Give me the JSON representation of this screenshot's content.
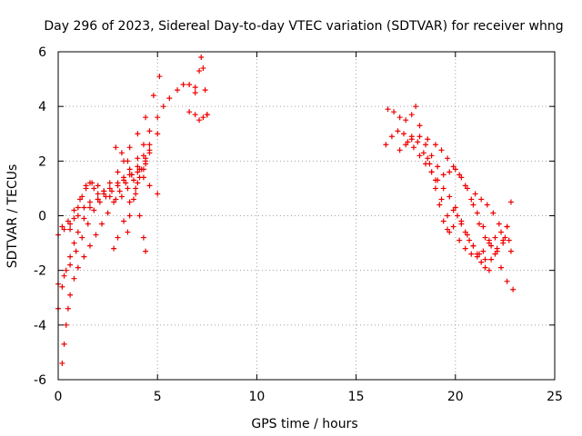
{
  "chart_data": {
    "type": "scatter",
    "title": "Day 296 of 2023, Sidereal Day-to-day VTEC variation (SDTVAR) for receiver whng",
    "xlabel": "GPS time / hours",
    "ylabel": "SDTVAR / TECUs",
    "xlim": [
      0,
      25
    ],
    "ylim": [
      -6,
      6
    ],
    "xticks": [
      0,
      5,
      10,
      15,
      20,
      25
    ],
    "yticks": [
      -6,
      -4,
      -2,
      0,
      2,
      4,
      6
    ],
    "xtick_labels": [
      "0",
      "5",
      "10",
      "15",
      "20",
      "25"
    ],
    "ytick_labels": [
      "-6",
      "-4",
      "-2",
      "0",
      "2",
      "4",
      "6"
    ],
    "grid": true,
    "marker": "+",
    "color": "#ee0000",
    "series": [
      {
        "x": [
          0.0,
          0.3,
          0.6,
          1.0,
          1.3,
          1.6,
          2.0,
          2.3,
          2.6,
          3.0,
          3.3,
          3.6,
          4.0,
          4.3,
          4.6,
          5.0,
          5.3,
          5.6,
          6.0,
          6.3,
          6.6,
          6.9
        ],
        "y": [
          -0.7,
          -0.5,
          -0.3,
          0.0,
          0.3,
          0.5,
          0.6,
          0.8,
          1.0,
          1.2,
          1.4,
          1.7,
          2.1,
          2.6,
          3.1,
          3.6,
          4.0,
          4.3,
          4.6,
          4.8,
          4.8,
          4.7
        ]
      },
      {
        "x": [
          0.0,
          0.3,
          0.6,
          0.9,
          1.2,
          1.5,
          1.8,
          2.1,
          2.4,
          2.7,
          3.0,
          3.3,
          3.6,
          4.0,
          4.3,
          4.6,
          5.0
        ],
        "y": [
          -2.5,
          -2.2,
          -1.8,
          -1.3,
          -0.8,
          -0.3,
          0.2,
          0.5,
          0.7,
          0.9,
          1.1,
          1.3,
          1.5,
          1.8,
          2.2,
          2.6,
          3.0
        ]
      },
      {
        "x": [
          0.0,
          0.2,
          0.4,
          0.6,
          0.8,
          1.0,
          1.3,
          1.6,
          2.0,
          2.3,
          2.6,
          3.0,
          3.3,
          3.6,
          4.0,
          4.4,
          4.8,
          5.1
        ],
        "y": [
          -3.4,
          -2.6,
          -2.0,
          -1.5,
          -1.0,
          -0.6,
          -0.1,
          0.3,
          0.6,
          0.9,
          1.2,
          1.6,
          2.0,
          2.5,
          3.0,
          3.6,
          4.4,
          5.1
        ]
      },
      {
        "x": [
          0.2,
          0.3,
          0.4,
          0.5,
          0.6,
          0.8,
          1.0,
          1.3,
          1.6,
          1.9,
          2.2,
          2.5,
          2.8,
          3.1,
          3.4,
          3.7,
          4.0,
          4.3,
          4.6,
          5.0
        ],
        "y": [
          -5.4,
          -4.7,
          -4.0,
          -3.4,
          -2.9,
          -2.3,
          -1.9,
          -1.5,
          -1.1,
          -0.7,
          -0.3,
          0.1,
          0.5,
          0.9,
          1.2,
          1.5,
          1.6,
          1.4,
          1.1,
          0.8
        ]
      },
      {
        "x": [
          0.2,
          0.5,
          0.8,
          1.1,
          1.4,
          1.7,
          2.0,
          2.3,
          2.6,
          2.9,
          3.2,
          3.5,
          3.8,
          4.1,
          4.4,
          4.6
        ],
        "y": [
          -0.4,
          -0.2,
          0.2,
          0.6,
          1.0,
          1.2,
          1.1,
          0.9,
          0.7,
          0.6,
          0.7,
          1.0,
          1.3,
          1.7,
          2.0,
          2.3
        ]
      },
      {
        "x": [
          0.6,
          0.8,
          1.0,
          1.2,
          1.4,
          1.6,
          1.8,
          2.0
        ],
        "y": [
          -0.5,
          -0.1,
          0.3,
          0.7,
          1.1,
          1.2,
          1.0,
          0.8
        ]
      },
      {
        "x": [
          2.8,
          3.0,
          3.3,
          3.6,
          3.9,
          4.1,
          4.3,
          4.4
        ],
        "y": [
          -1.2,
          -0.8,
          -0.2,
          0.5,
          1.0,
          1.4,
          1.7,
          1.9
        ]
      },
      {
        "x": [
          2.9,
          3.2,
          3.5,
          3.7,
          3.9,
          4.1,
          4.3,
          4.4
        ],
        "y": [
          2.5,
          2.3,
          2.0,
          1.5,
          0.8,
          0.0,
          -0.8,
          -1.3
        ]
      },
      {
        "x": [
          3.5,
          3.6,
          3.8,
          4.0,
          4.2,
          4.4,
          4.6
        ],
        "y": [
          -0.6,
          0.0,
          0.6,
          1.2,
          1.7,
          2.1,
          2.4
        ]
      },
      {
        "x": [
          6.6,
          6.9,
          7.1,
          7.2,
          7.3,
          7.4,
          7.5
        ],
        "y": [
          3.8,
          4.5,
          5.3,
          5.8,
          5.4,
          4.6,
          3.7
        ]
      },
      {
        "x": [
          6.9,
          7.1,
          7.3,
          7.5
        ],
        "y": [
          3.7,
          3.5,
          3.6,
          3.7
        ]
      },
      {
        "x": [
          16.5,
          16.8,
          17.1,
          17.4,
          17.8,
          18.2,
          18.6,
          19.0,
          19.3,
          19.6,
          19.9,
          20.2,
          20.5,
          20.8,
          21.1,
          21.4,
          21.7,
          22.0,
          22.3,
          22.6,
          22.9
        ],
        "y": [
          2.6,
          2.9,
          3.1,
          3.0,
          2.9,
          2.9,
          2.8,
          2.6,
          2.4,
          2.1,
          1.8,
          1.5,
          1.1,
          0.6,
          0.1,
          -0.4,
          -0.9,
          -1.4,
          -1.9,
          -2.4,
          -2.7
        ]
      },
      {
        "x": [
          16.6,
          16.9,
          17.2,
          17.5,
          17.8,
          18.0,
          18.2,
          18.5,
          18.8,
          19.1,
          19.4,
          19.7,
          20.0,
          20.3,
          20.6,
          20.9,
          21.2,
          21.5,
          21.8,
          22.1,
          22.4,
          22.7
        ],
        "y": [
          3.9,
          3.8,
          3.6,
          3.5,
          3.7,
          4.0,
          3.3,
          2.6,
          2.2,
          1.8,
          1.5,
          1.6,
          1.7,
          1.4,
          1.0,
          0.4,
          -0.3,
          -0.8,
          -1.1,
          -1.2,
          -1.0,
          -0.9
        ]
      },
      {
        "x": [
          17.2,
          17.5,
          17.8,
          18.1,
          18.4,
          18.7,
          19.0,
          19.3,
          19.6,
          19.9,
          20.2,
          20.5,
          20.8,
          21.1,
          21.4,
          21.7,
          22.0,
          22.3,
          22.6,
          22.8
        ],
        "y": [
          2.4,
          2.6,
          2.8,
          2.7,
          2.3,
          1.9,
          1.3,
          0.6,
          0.0,
          -0.4,
          -0.9,
          -1.2,
          -1.4,
          -1.5,
          -1.3,
          -1.0,
          -0.8,
          -0.6,
          -0.4,
          0.5
        ]
      },
      {
        "x": [
          17.6,
          17.9,
          18.2,
          18.5,
          18.8,
          19.1,
          19.4,
          19.7,
          20.0,
          20.3,
          20.6,
          20.9,
          21.2,
          21.5,
          21.8,
          22.1,
          22.4,
          22.6
        ],
        "y": [
          2.7,
          2.5,
          2.2,
          1.9,
          1.6,
          1.3,
          1.0,
          0.7,
          0.3,
          -0.2,
          -0.7,
          -1.1,
          -1.4,
          -1.6,
          -1.6,
          -1.3,
          -0.9,
          -0.4
        ]
      },
      {
        "x": [
          18.6,
          18.8,
          19.0,
          19.2,
          19.4,
          19.6,
          19.7
        ],
        "y": [
          2.1,
          1.6,
          1.0,
          0.4,
          -0.2,
          -0.5,
          -0.6
        ]
      },
      {
        "x": [
          19.9,
          20.1,
          20.3,
          20.5,
          20.7,
          20.9,
          21.1,
          21.3,
          21.5,
          21.7
        ],
        "y": [
          0.2,
          0.0,
          -0.3,
          -0.6,
          -0.9,
          -1.1,
          -1.4,
          -1.7,
          -1.9,
          -2.0
        ]
      },
      {
        "x": [
          21.0,
          21.3,
          21.6,
          21.9,
          22.2,
          22.5,
          22.8
        ],
        "y": [
          0.8,
          0.6,
          0.4,
          0.1,
          -0.3,
          -0.8,
          -1.3
        ]
      }
    ]
  }
}
